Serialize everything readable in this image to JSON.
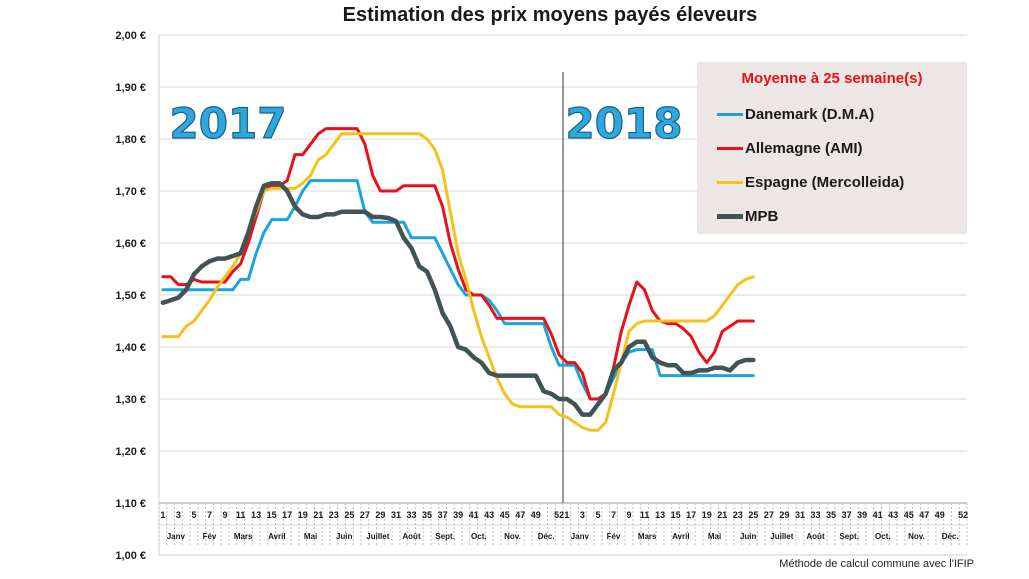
{
  "page": {
    "footnote": "Méthode de calcul commune avec l'IFIP"
  },
  "chart_data": {
    "type": "line",
    "title": "Estimation des prix moyens payés éleveurs",
    "xlabel": "",
    "ylabel": "",
    "ylim": [
      1.0,
      2.0
    ],
    "yticks": [
      "1,00 €",
      "1,10 €",
      "1,20 €",
      "1,30 €",
      "1,40 €",
      "1,50 €",
      "1,60 €",
      "1,70 €",
      "1,80 €",
      "1,90 €",
      "2,00 €"
    ],
    "year_labels": [
      "2017",
      "2018"
    ],
    "year_divider_after_week": 52,
    "week_tick_labels": {
      "2017": [
        "1",
        "3",
        "5",
        "7",
        "9",
        "11",
        "13",
        "15",
        "17",
        "19",
        "21",
        "23",
        "25",
        "27",
        "29",
        "31",
        "33",
        "35",
        "37",
        "39",
        "41",
        "43",
        "45",
        "47",
        "49",
        "52"
      ],
      "2018": [
        "1",
        "3",
        "5",
        "7",
        "9",
        "11",
        "13",
        "15",
        "17",
        "19",
        "21",
        "23",
        "25",
        "27",
        "29",
        "31",
        "33",
        "35",
        "37",
        "39",
        "41",
        "43",
        "45",
        "47",
        "49",
        "52"
      ]
    },
    "month_labels": [
      "Janv",
      "Fév",
      "Mars",
      "Avril",
      "Mai",
      "Juin",
      "Juillet",
      "Août",
      "Sept.",
      "Oct.",
      "Nov.",
      "Déc.",
      "Janv",
      "Fév",
      "Mars",
      "Avril",
      "Mai",
      "Juin",
      "Juillet",
      "Août",
      "Sept.",
      "Oct.",
      "Nov.",
      "Déc."
    ],
    "legend": {
      "title": "Moyenne à  25 semaine(s)",
      "placement": "top-right",
      "items": [
        "Danemark (D.M.A)",
        "Allemagne (AMI)",
        "Espagne (Mercolleida)",
        "MPB"
      ]
    },
    "series": [
      {
        "name": "Danemark (D.M.A)",
        "color": "#1aa3dd",
        "x": [
          1,
          2,
          3,
          4,
          5,
          6,
          7,
          8,
          9,
          10,
          11,
          12,
          13,
          14,
          15,
          16,
          17,
          18,
          19,
          20,
          21,
          22,
          23,
          24,
          25,
          26,
          27,
          28,
          29,
          30,
          31,
          32,
          33,
          34,
          35,
          36,
          37,
          38,
          39,
          40,
          41,
          42,
          43,
          44,
          45,
          46,
          47,
          48,
          49,
          50,
          51,
          52,
          53,
          54,
          55,
          56,
          57,
          58,
          59,
          60,
          61,
          62,
          63,
          64,
          65,
          66,
          67,
          68,
          69,
          70,
          71,
          72,
          73,
          74,
          75,
          76,
          77
        ],
        "y": [
          1.51,
          1.51,
          1.51,
          1.51,
          1.51,
          1.51,
          1.51,
          1.51,
          1.51,
          1.51,
          1.53,
          1.53,
          1.58,
          1.62,
          1.645,
          1.645,
          1.645,
          1.67,
          1.7,
          1.72,
          1.72,
          1.72,
          1.72,
          1.72,
          1.72,
          1.72,
          1.66,
          1.64,
          1.64,
          1.64,
          1.64,
          1.64,
          1.61,
          1.61,
          1.61,
          1.61,
          1.58,
          1.55,
          1.52,
          1.5,
          1.5,
          1.5,
          1.49,
          1.47,
          1.445,
          1.445,
          1.445,
          1.445,
          1.445,
          1.445,
          1.4,
          1.365,
          1.365,
          1.365,
          1.33,
          1.3,
          1.3,
          1.31,
          1.34,
          1.37,
          1.39,
          1.395,
          1.395,
          1.395,
          1.345,
          1.345,
          1.345,
          1.345,
          1.345,
          1.345,
          1.345,
          1.345,
          1.345,
          1.345,
          1.345,
          1.345,
          1.345
        ]
      },
      {
        "name": "Allemagne (AMI)",
        "color": "#e8111b",
        "x": [
          1,
          2,
          3,
          4,
          5,
          6,
          7,
          8,
          9,
          10,
          11,
          12,
          13,
          14,
          15,
          16,
          17,
          18,
          19,
          20,
          21,
          22,
          23,
          24,
          25,
          26,
          27,
          28,
          29,
          30,
          31,
          32,
          33,
          34,
          35,
          36,
          37,
          38,
          39,
          40,
          41,
          42,
          43,
          44,
          45,
          46,
          47,
          48,
          49,
          50,
          51,
          52,
          53,
          54,
          55,
          56,
          57,
          58,
          59,
          60,
          61,
          62,
          63,
          64,
          65,
          66,
          67,
          68,
          69,
          70,
          71,
          72,
          73,
          74,
          75,
          76,
          77
        ],
        "y": [
          1.535,
          1.535,
          1.52,
          1.52,
          1.53,
          1.525,
          1.525,
          1.525,
          1.525,
          1.545,
          1.56,
          1.6,
          1.65,
          1.7,
          1.71,
          1.71,
          1.72,
          1.77,
          1.77,
          1.79,
          1.81,
          1.82,
          1.82,
          1.82,
          1.82,
          1.82,
          1.79,
          1.73,
          1.7,
          1.7,
          1.7,
          1.71,
          1.71,
          1.71,
          1.71,
          1.71,
          1.67,
          1.6,
          1.55,
          1.51,
          1.5,
          1.5,
          1.48,
          1.455,
          1.455,
          1.455,
          1.455,
          1.455,
          1.455,
          1.455,
          1.425,
          1.385,
          1.37,
          1.37,
          1.35,
          1.3,
          1.3,
          1.31,
          1.36,
          1.43,
          1.48,
          1.525,
          1.51,
          1.47,
          1.45,
          1.445,
          1.445,
          1.435,
          1.42,
          1.39,
          1.37,
          1.39,
          1.43,
          1.44,
          1.45,
          1.45,
          1.45
        ]
      },
      {
        "name": "Espagne (Mercolleida)",
        "color": "#f5c21b",
        "x": [
          1,
          2,
          3,
          4,
          5,
          6,
          7,
          8,
          9,
          10,
          11,
          12,
          13,
          14,
          15,
          16,
          17,
          18,
          19,
          20,
          21,
          22,
          23,
          24,
          25,
          26,
          27,
          28,
          29,
          30,
          31,
          32,
          33,
          34,
          35,
          36,
          37,
          38,
          39,
          40,
          41,
          42,
          43,
          44,
          45,
          46,
          47,
          48,
          49,
          50,
          51,
          52,
          53,
          54,
          55,
          56,
          57,
          58,
          59,
          60,
          61,
          62,
          63,
          64,
          65,
          66,
          67,
          68,
          69,
          70,
          71,
          72,
          73,
          74,
          75,
          76,
          77
        ],
        "y": [
          1.42,
          1.42,
          1.42,
          1.44,
          1.45,
          1.47,
          1.49,
          1.515,
          1.535,
          1.555,
          1.58,
          1.62,
          1.66,
          1.7,
          1.705,
          1.705,
          1.705,
          1.705,
          1.715,
          1.73,
          1.76,
          1.77,
          1.79,
          1.81,
          1.81,
          1.81,
          1.81,
          1.81,
          1.81,
          1.81,
          1.81,
          1.81,
          1.81,
          1.81,
          1.8,
          1.78,
          1.74,
          1.66,
          1.58,
          1.53,
          1.47,
          1.42,
          1.38,
          1.34,
          1.31,
          1.29,
          1.285,
          1.285,
          1.285,
          1.285,
          1.285,
          1.27,
          1.265,
          1.255,
          1.245,
          1.24,
          1.24,
          1.255,
          1.31,
          1.37,
          1.43,
          1.445,
          1.45,
          1.45,
          1.45,
          1.45,
          1.45,
          1.45,
          1.45,
          1.45,
          1.45,
          1.46,
          1.48,
          1.5,
          1.52,
          1.53,
          1.535
        ]
      },
      {
        "name": "MPB",
        "color": "#415355",
        "x": [
          1,
          2,
          3,
          4,
          5,
          6,
          7,
          8,
          9,
          10,
          11,
          12,
          13,
          14,
          15,
          16,
          17,
          18,
          19,
          20,
          21,
          22,
          23,
          24,
          25,
          26,
          27,
          28,
          29,
          30,
          31,
          32,
          33,
          34,
          35,
          36,
          37,
          38,
          39,
          40,
          41,
          42,
          43,
          44,
          45,
          46,
          47,
          48,
          49,
          50,
          51,
          52,
          53,
          54,
          55,
          56,
          57,
          58,
          59,
          60,
          61,
          62,
          63,
          64,
          65,
          66,
          67,
          68,
          69,
          70,
          71,
          72,
          73,
          74,
          75,
          76,
          77
        ],
        "y": [
          1.485,
          1.49,
          1.495,
          1.51,
          1.54,
          1.555,
          1.565,
          1.57,
          1.57,
          1.575,
          1.58,
          1.62,
          1.67,
          1.71,
          1.715,
          1.715,
          1.7,
          1.67,
          1.655,
          1.65,
          1.65,
          1.655,
          1.655,
          1.66,
          1.66,
          1.66,
          1.66,
          1.65,
          1.65,
          1.648,
          1.642,
          1.61,
          1.59,
          1.555,
          1.545,
          1.51,
          1.465,
          1.44,
          1.4,
          1.395,
          1.38,
          1.37,
          1.35,
          1.345,
          1.345,
          1.345,
          1.345,
          1.345,
          1.345,
          1.315,
          1.31,
          1.3,
          1.3,
          1.29,
          1.27,
          1.27,
          1.29,
          1.31,
          1.355,
          1.37,
          1.4,
          1.41,
          1.41,
          1.38,
          1.37,
          1.365,
          1.365,
          1.35,
          1.35,
          1.355,
          1.355,
          1.36,
          1.36,
          1.355,
          1.37,
          1.375,
          1.375
        ]
      }
    ]
  }
}
